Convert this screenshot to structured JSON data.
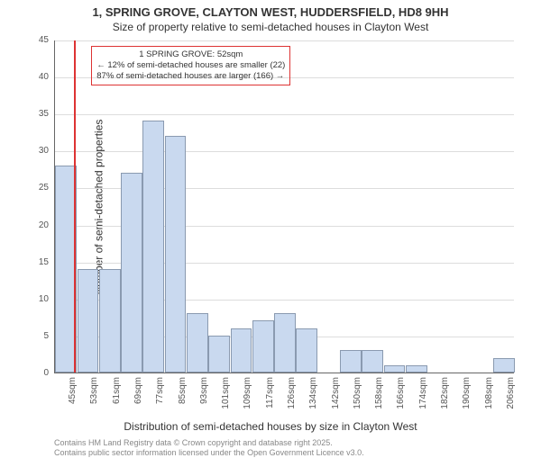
{
  "title_main": "1, SPRING GROVE, CLAYTON WEST, HUDDERSFIELD, HD8 9HH",
  "title_sub": "Size of property relative to semi-detached houses in Clayton West",
  "chart": {
    "type": "histogram",
    "ylabel": "Number of semi-detached properties",
    "xlabel": "Distribution of semi-detached houses by size in Clayton West",
    "ylim": [
      0,
      45
    ],
    "ytick_step": 5,
    "yticks": [
      0,
      5,
      10,
      15,
      20,
      25,
      30,
      35,
      40,
      45
    ],
    "xtick_labels": [
      "45sqm",
      "53sqm",
      "61sqm",
      "69sqm",
      "77sqm",
      "85sqm",
      "93sqm",
      "101sqm",
      "109sqm",
      "117sqm",
      "126sqm",
      "134sqm",
      "142sqm",
      "150sqm",
      "158sqm",
      "166sqm",
      "174sqm",
      "182sqm",
      "190sqm",
      "198sqm",
      "206sqm"
    ],
    "values": [
      28,
      14,
      14,
      27,
      34,
      32,
      8,
      5,
      6,
      7,
      8,
      6,
      0,
      3,
      3,
      1,
      1,
      0,
      0,
      0,
      2
    ],
    "bar_fill": "#c9d9ef",
    "bar_border": "#8a9ab0",
    "background": "#ffffff",
    "grid_color": "#dddddd",
    "axis_color": "#666666",
    "highlight": {
      "position_sqm": 52,
      "color": "#d33",
      "line_width": 2
    },
    "annotation": {
      "title": "1 SPRING GROVE: 52sqm",
      "line1": "← 12% of semi-detached houses are smaller (22)",
      "line2": "87% of semi-detached houses are larger (166) →",
      "border_color": "#d33",
      "fontsize": 9.5
    }
  },
  "credits": {
    "line1": "Contains HM Land Registry data © Crown copyright and database right 2025.",
    "line2": "Contains public sector information licensed under the Open Government Licence v3.0."
  }
}
